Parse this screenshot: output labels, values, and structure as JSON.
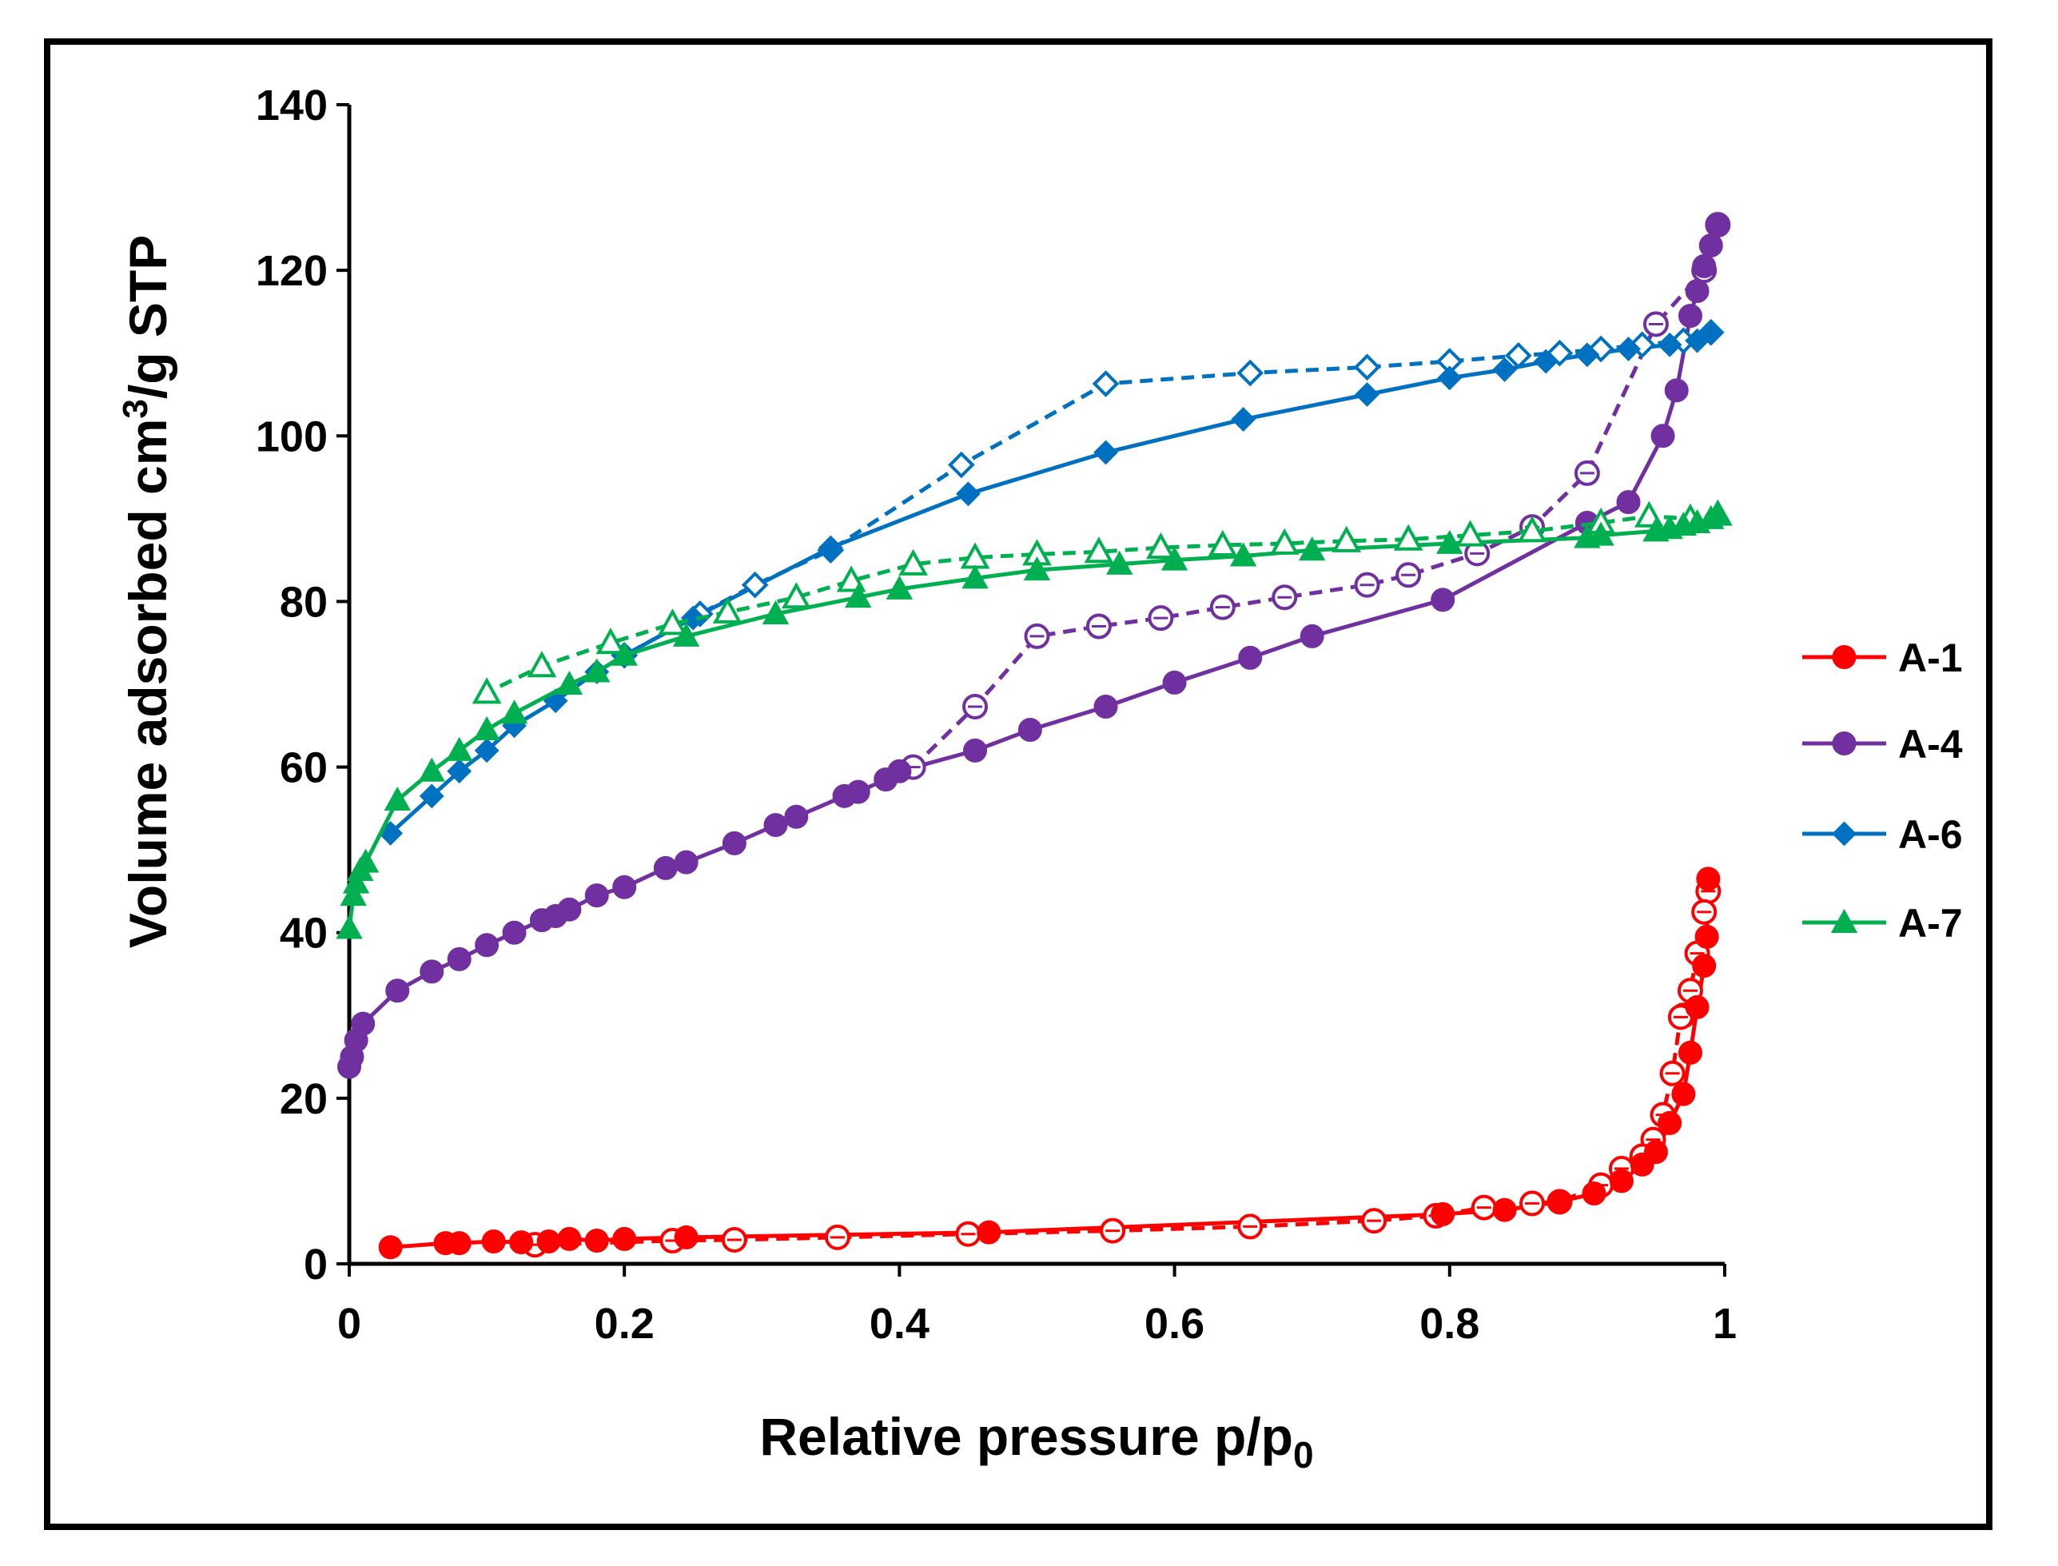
{
  "chart_data": {
    "type": "line",
    "title": "",
    "xlabel": "Relative pressure p/p",
    "xlabel_subscript": "0",
    "ylabel": "Volume adsorbed cm",
    "ylabel_superscript": "3",
    "ylabel_suffix": "/g STP",
    "xlim": [
      0,
      1
    ],
    "ylim": [
      0,
      140
    ],
    "xticks": [
      0,
      0.2,
      0.4,
      0.6,
      0.8,
      1
    ],
    "xtick_labels": [
      "0",
      "0.2",
      "0.4",
      "0.6",
      "0.8",
      "1"
    ],
    "yticks": [
      0,
      20,
      40,
      60,
      80,
      100,
      120,
      140
    ],
    "ytick_labels": [
      "0",
      "20",
      "40",
      "60",
      "80",
      "100",
      "120",
      "140"
    ],
    "grid": false,
    "legend_position": "right",
    "series": [
      {
        "name": "A-1",
        "color": "#ff0000",
        "marker": "circle",
        "adsorption": {
          "x": [
            0.03,
            0.07,
            0.08,
            0.105,
            0.125,
            0.145,
            0.16,
            0.18,
            0.2,
            0.245,
            0.465,
            0.795,
            0.84,
            0.88,
            0.905,
            0.925,
            0.94,
            0.95,
            0.96,
            0.97,
            0.975,
            0.98,
            0.985,
            0.987,
            0.988
          ],
          "y": [
            2.0,
            2.5,
            2.5,
            2.7,
            2.6,
            2.7,
            3.0,
            2.8,
            3.0,
            3.2,
            3.8,
            6.0,
            6.5,
            7.5,
            8.5,
            10.0,
            12.0,
            13.5,
            17.0,
            20.5,
            25.5,
            31.0,
            36.0,
            39.5,
            46.5
          ]
        },
        "desorption": {
          "x": [
            0.988,
            0.985,
            0.98,
            0.975,
            0.97,
            0.968,
            0.962,
            0.955,
            0.948,
            0.94,
            0.925,
            0.91,
            0.88,
            0.86,
            0.825,
            0.79,
            0.745,
            0.655,
            0.555,
            0.45,
            0.355,
            0.28,
            0.235,
            0.135
          ],
          "y": [
            45.0,
            42.5,
            37.5,
            33.0,
            30.0,
            29.8,
            23.0,
            18.0,
            15.0,
            13.0,
            11.5,
            9.5,
            7.5,
            7.3,
            6.8,
            5.8,
            5.2,
            4.5,
            4.0,
            3.6,
            3.2,
            2.9,
            2.8,
            2.3
          ]
        }
      },
      {
        "name": "A-4",
        "color": "#7030a0",
        "marker": "circle",
        "adsorption": {
          "x": [
            0.0,
            0.002,
            0.005,
            0.01,
            0.035,
            0.06,
            0.08,
            0.1,
            0.12,
            0.14,
            0.15,
            0.16,
            0.18,
            0.2,
            0.23,
            0.245,
            0.28,
            0.31,
            0.325,
            0.36,
            0.37,
            0.39,
            0.4,
            0.455,
            0.495,
            0.55,
            0.6,
            0.655,
            0.7,
            0.795,
            0.9,
            0.93,
            0.955,
            0.965,
            0.975,
            0.98,
            0.985,
            0.99,
            0.995
          ],
          "y": [
            23.8,
            25.0,
            27.0,
            29.0,
            33.0,
            35.3,
            36.8,
            38.5,
            40.0,
            41.5,
            42.0,
            42.8,
            44.5,
            45.5,
            47.8,
            48.5,
            50.8,
            53.0,
            54.0,
            56.5,
            57.0,
            58.5,
            59.5,
            62.0,
            64.5,
            67.3,
            70.2,
            73.2,
            75.8,
            80.2,
            89.5,
            92.0,
            100.0,
            105.5,
            114.5,
            117.5,
            120.5,
            123.0,
            125.5
          ]
        },
        "desorption": {
          "x": [
            0.995,
            0.985,
            0.95,
            0.9,
            0.86,
            0.82,
            0.77,
            0.74,
            0.68,
            0.635,
            0.59,
            0.545,
            0.5,
            0.455,
            0.41
          ],
          "y": [
            125.5,
            120.0,
            113.5,
            95.5,
            89.0,
            85.8,
            83.2,
            82.0,
            80.5,
            79.3,
            78.0,
            77.0,
            75.8,
            67.3,
            60.0
          ]
        }
      },
      {
        "name": "A-6",
        "color": "#0070c0",
        "marker": "diamond",
        "adsorption": {
          "x": [
            0.03,
            0.06,
            0.08,
            0.1,
            0.12,
            0.15,
            0.18,
            0.2,
            0.25,
            0.35,
            0.45,
            0.55,
            0.65,
            0.74,
            0.8,
            0.84,
            0.87,
            0.9,
            0.93,
            0.96,
            0.98,
            0.99
          ],
          "y": [
            52.0,
            56.5,
            59.5,
            62.0,
            65.0,
            68.0,
            71.5,
            73.5,
            78.0,
            86.5,
            93.0,
            98.0,
            102.0,
            105.0,
            107.0,
            108.0,
            109.0,
            109.8,
            110.5,
            111.0,
            111.5,
            112.5
          ]
        },
        "desorption": {
          "x": [
            0.99,
            0.97,
            0.94,
            0.91,
            0.88,
            0.85,
            0.8,
            0.74,
            0.655,
            0.55,
            0.445,
            0.35,
            0.295,
            0.255,
            0.2
          ],
          "y": [
            112.5,
            111.5,
            111.0,
            110.5,
            110.0,
            109.7,
            109.0,
            108.3,
            107.6,
            106.3,
            96.5,
            86.2,
            82.0,
            78.5,
            73.5
          ]
        }
      },
      {
        "name": "A-7",
        "color": "#00b050",
        "marker": "triangle",
        "adsorption": {
          "x": [
            0.0,
            0.003,
            0.005,
            0.008,
            0.012,
            0.035,
            0.06,
            0.08,
            0.1,
            0.12,
            0.16,
            0.18,
            0.2,
            0.245,
            0.31,
            0.37,
            0.4,
            0.455,
            0.5,
            0.56,
            0.6,
            0.65,
            0.7,
            0.8,
            0.9,
            0.91,
            0.95,
            0.96,
            0.97,
            0.98,
            0.99,
            0.995
          ],
          "y": [
            40.5,
            44.5,
            46.0,
            47.5,
            48.5,
            56.0,
            59.5,
            62.0,
            64.5,
            66.5,
            70.0,
            71.5,
            73.5,
            75.8,
            78.5,
            80.5,
            81.5,
            82.8,
            83.8,
            84.5,
            85.0,
            85.5,
            86.2,
            87.0,
            87.7,
            88.0,
            88.5,
            88.8,
            89.2,
            89.5,
            90.0,
            90.5
          ]
        },
        "desorption": {
          "x": [
            0.995,
            0.975,
            0.945,
            0.91,
            0.86,
            0.815,
            0.77,
            0.725,
            0.68,
            0.635,
            0.59,
            0.545,
            0.5,
            0.455,
            0.41,
            0.365,
            0.325,
            0.275,
            0.235,
            0.19,
            0.14,
            0.1
          ],
          "y": [
            90.5,
            90.0,
            90.3,
            89.5,
            88.5,
            88.0,
            87.5,
            87.3,
            87.0,
            86.8,
            86.5,
            86.0,
            85.7,
            85.3,
            84.5,
            82.5,
            80.5,
            78.7,
            77.3,
            75.0,
            72.2,
            69.0
          ]
        }
      }
    ]
  }
}
